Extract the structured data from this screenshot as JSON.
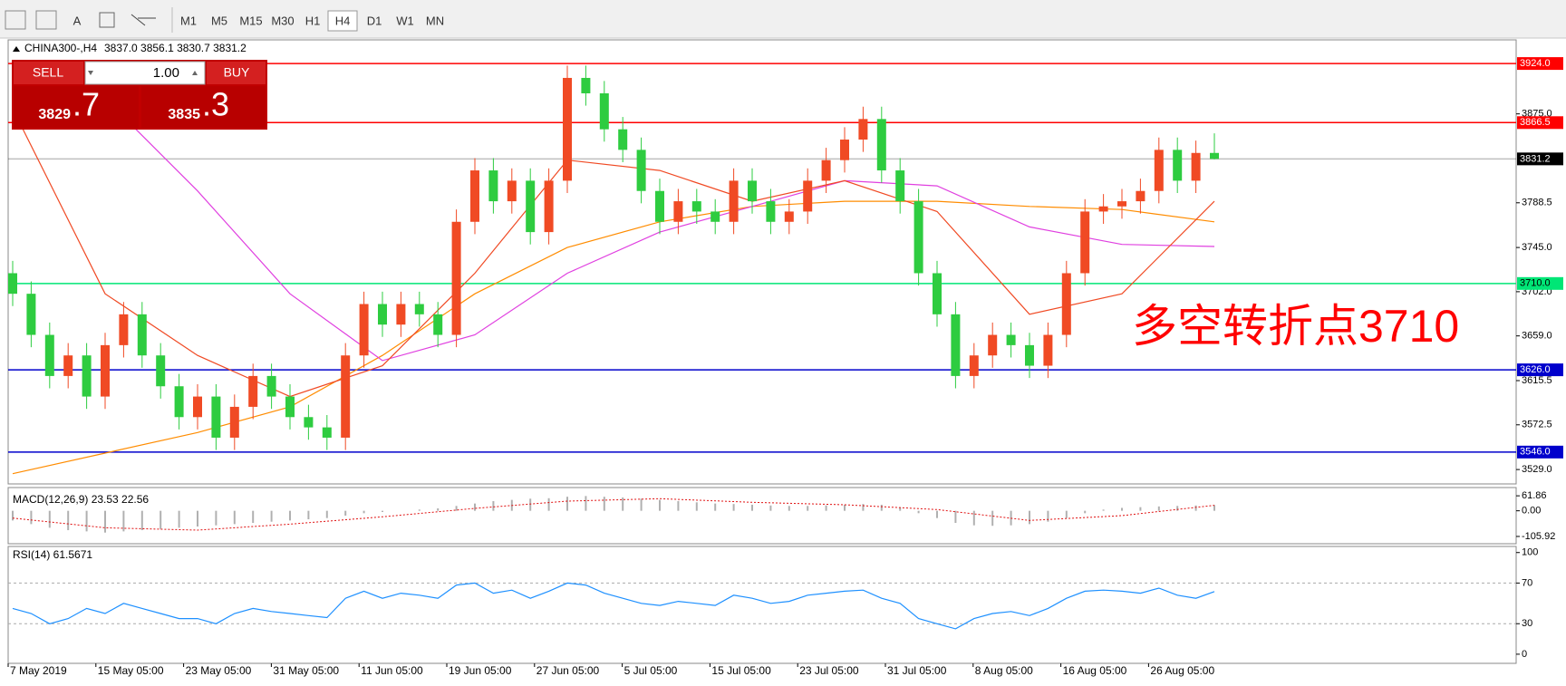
{
  "toolbar": {
    "text_tool": "A",
    "timeframes": [
      "M1",
      "M5",
      "M15",
      "M30",
      "H1",
      "H4",
      "D1",
      "W1",
      "MN"
    ],
    "active": 5
  },
  "trade_panel": {
    "sell": "SELL",
    "buy": "BUY",
    "lot": "1.00",
    "bid_main": "3829",
    "bid_frac": ".7",
    "ask_main": "3835",
    "ask_frac": ".3"
  },
  "chart_data": [
    {
      "type": "candlestick",
      "symbol": "CHINA300-,H4",
      "ohlc_text": "3837.0 3856.1 3830.7 3831.2",
      "up_color": "#f04a24",
      "down_color": "#2ecc40",
      "open": [
        3720,
        3700,
        3660,
        3620,
        3640,
        3600,
        3650,
        3680,
        3640,
        3610,
        3580,
        3600,
        3560,
        3590,
        3620,
        3600,
        3580,
        3570,
        3560,
        3640,
        3690,
        3670,
        3690,
        3680,
        3660,
        3770,
        3820,
        3790,
        3810,
        3760,
        3810,
        3910,
        3895,
        3860,
        3840,
        3800,
        3770,
        3790,
        3780,
        3770,
        3810,
        3790,
        3770,
        3780,
        3810,
        3830,
        3850,
        3870,
        3820,
        3790,
        3720,
        3680,
        3620,
        3640,
        3660,
        3650,
        3630,
        3660,
        3720,
        3780,
        3785,
        3790,
        3800,
        3840,
        3810,
        3837
      ],
      "high": [
        3732,
        3712,
        3672,
        3652,
        3652,
        3662,
        3692,
        3692,
        3652,
        3622,
        3612,
        3612,
        3602,
        3632,
        3632,
        3612,
        3592,
        3582,
        3652,
        3702,
        3702,
        3702,
        3702,
        3692,
        3782,
        3832,
        3832,
        3822,
        3822,
        3822,
        3922,
        3922,
        3907,
        3872,
        3852,
        3812,
        3802,
        3802,
        3792,
        3822,
        3822,
        3802,
        3792,
        3822,
        3842,
        3862,
        3882,
        3882,
        3832,
        3802,
        3732,
        3692,
        3652,
        3672,
        3672,
        3662,
        3672,
        3732,
        3792,
        3797,
        3802,
        3812,
        3852,
        3852,
        3849,
        3856.1
      ],
      "low": [
        3688,
        3648,
        3608,
        3608,
        3588,
        3588,
        3638,
        3628,
        3598,
        3568,
        3568,
        3548,
        3548,
        3578,
        3588,
        3568,
        3558,
        3548,
        3548,
        3628,
        3658,
        3658,
        3668,
        3648,
        3648,
        3758,
        3778,
        3778,
        3748,
        3748,
        3798,
        3883,
        3848,
        3828,
        3788,
        3758,
        3758,
        3768,
        3758,
        3758,
        3778,
        3758,
        3758,
        3768,
        3798,
        3818,
        3838,
        3808,
        3778,
        3708,
        3668,
        3608,
        3608,
        3628,
        3638,
        3618,
        3618,
        3648,
        3708,
        3768,
        3773,
        3778,
        3788,
        3798,
        3798,
        3830.7
      ],
      "close": [
        3700,
        3660,
        3620,
        3640,
        3600,
        3650,
        3680,
        3640,
        3610,
        3580,
        3600,
        3560,
        3590,
        3620,
        3600,
        3580,
        3570,
        3560,
        3640,
        3690,
        3670,
        3690,
        3680,
        3660,
        3770,
        3820,
        3790,
        3810,
        3760,
        3810,
        3910,
        3895,
        3860,
        3840,
        3800,
        3770,
        3790,
        3780,
        3770,
        3810,
        3790,
        3770,
        3780,
        3810,
        3830,
        3850,
        3870,
        3820,
        3790,
        3720,
        3680,
        3620,
        3640,
        3660,
        3650,
        3630,
        3660,
        3720,
        3780,
        3785,
        3790,
        3800,
        3840,
        3810,
        3837,
        3831.2
      ],
      "ma_x": [
        0,
        5,
        10,
        15,
        20,
        25,
        30,
        35,
        40,
        45,
        50,
        55,
        60,
        65
      ],
      "ma_lines": [
        {
          "color": "#ff8c00",
          "values": [
            3525,
            3545,
            3565,
            3590,
            3640,
            3700,
            3745,
            3770,
            3785,
            3790,
            3790,
            3785,
            3782,
            3770
          ]
        },
        {
          "color": "#e040e0",
          "values": [
            null,
            3890,
            3800,
            3700,
            3635,
            3660,
            3720,
            3760,
            3785,
            3810,
            3805,
            3765,
            3748,
            3746
          ]
        },
        {
          "color": "#f04a24",
          "values": [
            3880,
            3700,
            3640,
            3600,
            3630,
            3720,
            3830,
            3820,
            3790,
            3810,
            3780,
            3680,
            3700,
            3790
          ]
        }
      ],
      "ylim": [
        3515,
        3947
      ],
      "yticks": [
        {
          "value": 3875,
          "label": "3875.0"
        },
        {
          "value": 3788.5,
          "label": "3788.5"
        },
        {
          "value": 3745,
          "label": "3745.0"
        },
        {
          "value": 3702,
          "label": "3702.0"
        },
        {
          "value": 3659,
          "label": "3659.0"
        },
        {
          "value": 3615.5,
          "label": "3615.5"
        },
        {
          "value": 3572.5,
          "label": "3572.5"
        },
        {
          "value": 3529,
          "label": "3529.0"
        }
      ],
      "levels": [
        {
          "value": 3924,
          "label": "3924.0",
          "color": "#ff0000"
        },
        {
          "value": 3866.5,
          "label": "3866.5",
          "color": "#ff0000"
        },
        {
          "value": 3831.2,
          "label": "3831.2",
          "color": "#000000"
        },
        {
          "value": 3710,
          "label": "3710.0",
          "color": "#00e676"
        },
        {
          "value": 3626,
          "label": "3626.0",
          "color": "#0000cc"
        },
        {
          "value": 3546,
          "label": "3546.0",
          "color": "#0000cc"
        }
      ],
      "annotation": "多空转折点3710",
      "x_labels": [
        "7 May 2019",
        "15 May 05:00",
        "23 May 05:00",
        "31 May 05:00",
        "11 Jun 05:00",
        "19 Jun 05:00",
        "27 Jun 05:00",
        "5 Jul 05:00",
        "15 Jul 05:00",
        "23 Jul 05:00",
        "31 Jul 05:00",
        "8 Aug 05:00",
        "16 Aug 05:00",
        "26 Aug 05:00"
      ]
    },
    {
      "type": "macd",
      "title": "MACD(12,26,9) 23.53 22.56",
      "color": "#b0b0b0",
      "signal_color": "#e01010",
      "histogram": [
        -40,
        -55,
        -70,
        -80,
        -85,
        -90,
        -85,
        -80,
        -75,
        -70,
        -65,
        -60,
        -55,
        -50,
        -45,
        -40,
        -35,
        -30,
        -20,
        -10,
        -5,
        0,
        5,
        10,
        20,
        30,
        40,
        45,
        50,
        52,
        58,
        61,
        58,
        55,
        50,
        45,
        40,
        35,
        30,
        28,
        25,
        22,
        20,
        20,
        22,
        25,
        28,
        25,
        15,
        -10,
        -30,
        -50,
        -60,
        -62,
        -60,
        -55,
        -45,
        -30,
        -10,
        5,
        12,
        15,
        18,
        20,
        22,
        23.53
      ],
      "signal_x": [
        0,
        5,
        10,
        15,
        20,
        25,
        30,
        35,
        40,
        45,
        50,
        55,
        60,
        65
      ],
      "signal": [
        -30,
        -70,
        -80,
        -55,
        -25,
        10,
        40,
        50,
        35,
        25,
        5,
        -40,
        -20,
        22.56
      ],
      "ylim": [
        -136,
        96
      ],
      "yticks": [
        61.86,
        {
          "value": 0,
          "label": "0.00"
        },
        -105.92
      ]
    },
    {
      "type": "line",
      "title": "RSI(14) 61.5671",
      "color": "#1e90ff",
      "values": [
        45,
        40,
        30,
        35,
        45,
        40,
        50,
        45,
        40,
        35,
        35,
        30,
        40,
        45,
        42,
        40,
        38,
        36,
        55,
        62,
        55,
        60,
        58,
        55,
        68,
        70,
        60,
        63,
        55,
        62,
        70,
        68,
        60,
        55,
        50,
        48,
        52,
        50,
        48,
        58,
        55,
        50,
        52,
        58,
        60,
        62,
        63,
        55,
        50,
        35,
        30,
        25,
        35,
        40,
        42,
        38,
        45,
        55,
        62,
        63,
        62,
        60,
        65,
        58,
        55,
        61.5671
      ],
      "levels": [
        70,
        30
      ],
      "ylim": [
        -9,
        106
      ],
      "yticks": [
        100,
        70,
        30,
        0
      ]
    }
  ]
}
